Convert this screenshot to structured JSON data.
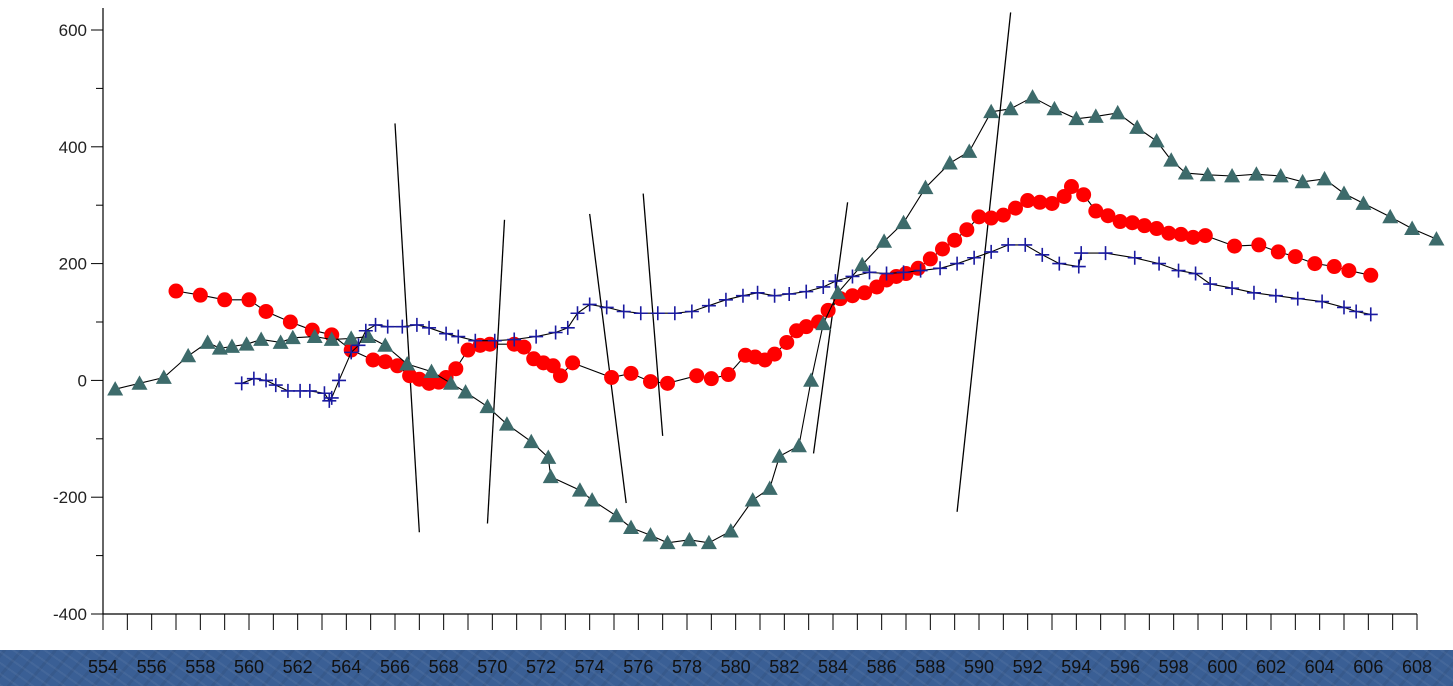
{
  "chart_data": {
    "type": "line",
    "title": "",
    "xlabel": "",
    "ylabel": "",
    "xlim": [
      554,
      608
    ],
    "ylim": [
      -400,
      600
    ],
    "x_ticks": [
      "554",
      "556",
      "558",
      "560",
      "562",
      "564",
      "566",
      "568",
      "570",
      "572",
      "574",
      "576",
      "578",
      "580",
      "582",
      "584",
      "586",
      "588",
      "590",
      "592",
      "594",
      "596",
      "598",
      "600",
      "602",
      "604",
      "606",
      "608"
    ],
    "y_ticks": [
      "600",
      "400",
      "200",
      "0",
      "-200",
      "-400"
    ],
    "grid": false,
    "legend": "none",
    "series": [
      {
        "marker": "circle",
        "color": "#ff0000",
        "points": [
          [
            557,
            153
          ],
          [
            558,
            146
          ],
          [
            559,
            138
          ],
          [
            560,
            138
          ],
          [
            560.7,
            118
          ],
          [
            561.7,
            100
          ],
          [
            562.6,
            86
          ],
          [
            563.4,
            78
          ],
          [
            564.2,
            52
          ],
          [
            565.1,
            35
          ],
          [
            565.6,
            32
          ],
          [
            566.1,
            25
          ],
          [
            566.6,
            8
          ],
          [
            567,
            2
          ],
          [
            567.4,
            -5
          ],
          [
            567.8,
            -3
          ],
          [
            568.1,
            5
          ],
          [
            568.5,
            20
          ],
          [
            569,
            52
          ],
          [
            569.5,
            60
          ],
          [
            569.9,
            62
          ],
          [
            570.9,
            62
          ],
          [
            571.3,
            57
          ],
          [
            571.7,
            37
          ],
          [
            572.1,
            30
          ],
          [
            572.5,
            25
          ],
          [
            572.8,
            8
          ],
          [
            573.3,
            30
          ],
          [
            574.9,
            5
          ],
          [
            575.7,
            12
          ],
          [
            576.5,
            -2
          ],
          [
            577.2,
            -5
          ],
          [
            578.4,
            8
          ],
          [
            579,
            3
          ],
          [
            579.7,
            10
          ],
          [
            580.4,
            43
          ],
          [
            580.8,
            40
          ],
          [
            581.2,
            35
          ],
          [
            581.6,
            45
          ],
          [
            582.1,
            65
          ],
          [
            582.5,
            85
          ],
          [
            582.9,
            92
          ],
          [
            583.4,
            100
          ],
          [
            583.8,
            120
          ],
          [
            584.3,
            140
          ],
          [
            584.8,
            145
          ],
          [
            585.3,
            150
          ],
          [
            585.8,
            160
          ],
          [
            586.2,
            172
          ],
          [
            586.6,
            178
          ],
          [
            587,
            183
          ],
          [
            587.5,
            192
          ],
          [
            588,
            208
          ],
          [
            588.5,
            225
          ],
          [
            589,
            240
          ],
          [
            589.5,
            258
          ],
          [
            590,
            280
          ],
          [
            590.5,
            278
          ],
          [
            591,
            283
          ],
          [
            591.5,
            295
          ],
          [
            592,
            308
          ],
          [
            592.5,
            305
          ],
          [
            593,
            303
          ],
          [
            593.5,
            315
          ],
          [
            593.8,
            332
          ],
          [
            594.3,
            318
          ],
          [
            594.8,
            290
          ],
          [
            595.3,
            282
          ],
          [
            595.8,
            272
          ],
          [
            596.3,
            270
          ],
          [
            596.8,
            265
          ],
          [
            597.3,
            260
          ],
          [
            597.8,
            252
          ],
          [
            598.3,
            250
          ],
          [
            598.8,
            245
          ],
          [
            599.3,
            248
          ],
          [
            600.5,
            230
          ],
          [
            601.5,
            232
          ],
          [
            602.3,
            220
          ],
          [
            603,
            212
          ],
          [
            603.8,
            200
          ],
          [
            604.6,
            195
          ],
          [
            605.2,
            188
          ],
          [
            606.1,
            180
          ]
        ]
      },
      {
        "marker": "triangle",
        "color": "#3d6b6b",
        "points": [
          [
            554.5,
            -15
          ],
          [
            555.5,
            -5
          ],
          [
            556.5,
            5
          ],
          [
            557.5,
            42
          ],
          [
            558.3,
            65
          ],
          [
            558.8,
            55
          ],
          [
            559.3,
            58
          ],
          [
            559.9,
            62
          ],
          [
            560.5,
            70
          ],
          [
            561.3,
            65
          ],
          [
            561.8,
            73
          ],
          [
            562.7,
            75
          ],
          [
            563.4,
            70
          ],
          [
            564.2,
            72
          ],
          [
            564.9,
            75
          ],
          [
            565.6,
            60
          ],
          [
            566.5,
            28
          ],
          [
            567.5,
            15
          ],
          [
            568.3,
            -5
          ],
          [
            568.9,
            -20
          ],
          [
            569.8,
            -45
          ],
          [
            570.6,
            -75
          ],
          [
            571.6,
            -105
          ],
          [
            572.3,
            -132
          ],
          [
            572.4,
            -165
          ],
          [
            573.6,
            -188
          ],
          [
            574.1,
            -205
          ],
          [
            575.1,
            -232
          ],
          [
            575.7,
            -252
          ],
          [
            576.5,
            -265
          ],
          [
            577.2,
            -278
          ],
          [
            578.1,
            -273
          ],
          [
            578.9,
            -278
          ],
          [
            579.8,
            -258
          ],
          [
            580.7,
            -205
          ],
          [
            581.4,
            -185
          ],
          [
            581.8,
            -130
          ],
          [
            582.6,
            -112
          ],
          [
            583.1,
            0
          ],
          [
            583.6,
            97
          ],
          [
            584.2,
            150
          ],
          [
            585.2,
            198
          ],
          [
            586.1,
            238
          ],
          [
            586.9,
            270
          ],
          [
            587.8,
            330
          ],
          [
            588.8,
            372
          ],
          [
            589.6,
            392
          ],
          [
            590.5,
            460
          ],
          [
            591.3,
            465
          ],
          [
            592.2,
            485
          ],
          [
            593.1,
            465
          ],
          [
            594,
            448
          ],
          [
            594.8,
            452
          ],
          [
            595.7,
            458
          ],
          [
            596.5,
            433
          ],
          [
            597.3,
            410
          ],
          [
            597.9,
            377
          ],
          [
            598.5,
            355
          ],
          [
            599.4,
            352
          ],
          [
            600.4,
            350
          ],
          [
            601.4,
            353
          ],
          [
            602.4,
            350
          ],
          [
            603.3,
            340
          ],
          [
            604.2,
            345
          ],
          [
            605,
            320
          ],
          [
            605.8,
            303
          ],
          [
            606.9,
            280
          ],
          [
            607.8,
            260
          ],
          [
            608.8,
            242
          ]
        ]
      },
      {
        "marker": "plus",
        "color": "#1a1aa0",
        "points": [
          [
            559.7,
            -5
          ],
          [
            560.2,
            3
          ],
          [
            560.7,
            0
          ],
          [
            561.1,
            -8
          ],
          [
            561.6,
            -18
          ],
          [
            562.1,
            -18
          ],
          [
            562.5,
            -18
          ],
          [
            563.1,
            -22
          ],
          [
            563.3,
            -35
          ],
          [
            563.4,
            -30
          ],
          [
            563.7,
            0
          ],
          [
            564.2,
            48
          ],
          [
            564.5,
            60
          ],
          [
            564.8,
            85
          ],
          [
            565.2,
            95
          ],
          [
            565.7,
            92
          ],
          [
            566.3,
            92
          ],
          [
            566.9,
            95
          ],
          [
            567.4,
            90
          ],
          [
            568.1,
            80
          ],
          [
            568.6,
            75
          ],
          [
            569.3,
            68
          ],
          [
            570.1,
            68
          ],
          [
            570.9,
            70
          ],
          [
            571.8,
            75
          ],
          [
            572.6,
            82
          ],
          [
            573.1,
            90
          ],
          [
            573.5,
            115
          ],
          [
            574,
            130
          ],
          [
            574.7,
            125
          ],
          [
            575.4,
            118
          ],
          [
            576.1,
            115
          ],
          [
            576.8,
            115
          ],
          [
            577.5,
            115
          ],
          [
            578.2,
            118
          ],
          [
            578.9,
            128
          ],
          [
            579.6,
            138
          ],
          [
            580.3,
            145
          ],
          [
            580.9,
            150
          ],
          [
            581.6,
            145
          ],
          [
            582.2,
            148
          ],
          [
            582.9,
            152
          ],
          [
            583.6,
            160
          ],
          [
            584.1,
            170
          ],
          [
            584.8,
            178
          ],
          [
            585.5,
            185
          ],
          [
            586.2,
            183
          ],
          [
            586.9,
            185
          ],
          [
            587.6,
            188
          ],
          [
            588.4,
            192
          ],
          [
            589.1,
            200
          ],
          [
            589.8,
            210
          ],
          [
            590.5,
            220
          ],
          [
            591.2,
            232
          ],
          [
            591.9,
            232
          ],
          [
            592.6,
            215
          ],
          [
            593.3,
            200
          ],
          [
            594.1,
            195
          ],
          [
            594.2,
            218
          ],
          [
            595.2,
            218
          ],
          [
            596.4,
            210
          ],
          [
            597.4,
            200
          ],
          [
            598.2,
            188
          ],
          [
            598.9,
            183
          ],
          [
            599.5,
            165
          ],
          [
            600.4,
            158
          ],
          [
            601.3,
            150
          ],
          [
            602.2,
            145
          ],
          [
            603.1,
            140
          ],
          [
            604.1,
            135
          ],
          [
            605,
            125
          ],
          [
            605.5,
            118
          ],
          [
            606.1,
            113
          ]
        ]
      }
    ],
    "annotation_lines": [
      [
        [
          566,
          440
        ],
        [
          567,
          -260
        ]
      ],
      [
        [
          570.5,
          275
        ],
        [
          569.8,
          -245
        ]
      ],
      [
        [
          574,
          285
        ],
        [
          575.5,
          -210
        ]
      ],
      [
        [
          576.2,
          320
        ],
        [
          577,
          -95
        ]
      ],
      [
        [
          584.6,
          305
        ],
        [
          583.2,
          -125
        ]
      ],
      [
        [
          591.3,
          630
        ],
        [
          589.1,
          -225
        ]
      ]
    ]
  }
}
